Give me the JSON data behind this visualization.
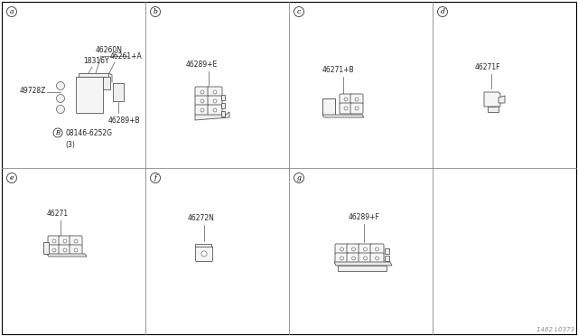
{
  "bg_color": "#ffffff",
  "line_color": "#555555",
  "lw": 0.6,
  "label_fs": 5.5,
  "cell_label_fs": 6.5,
  "watermark": "1462 L0373",
  "grid_color": "#aaaaaa",
  "cols": 4,
  "rows": 2,
  "cells": [
    {
      "id": "a",
      "col": 0,
      "row": 0
    },
    {
      "id": "b",
      "col": 1,
      "row": 0
    },
    {
      "id": "c",
      "col": 2,
      "row": 0
    },
    {
      "id": "d",
      "col": 3,
      "row": 0
    },
    {
      "id": "e",
      "col": 0,
      "row": 1
    },
    {
      "id": "f",
      "col": 1,
      "row": 1
    },
    {
      "id": "g",
      "col": 2,
      "row": 1
    }
  ]
}
